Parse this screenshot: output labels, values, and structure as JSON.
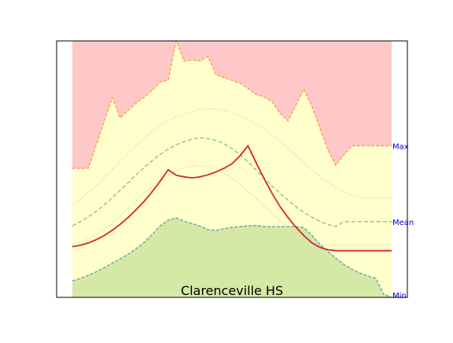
{
  "chart_data": {
    "type": "area",
    "title": "Clarenceville HS",
    "xlabel": "",
    "ylabel": "",
    "grid": false,
    "legend": "none",
    "x": [
      0,
      1,
      2,
      3,
      4,
      5,
      6,
      7,
      8,
      9,
      10,
      11,
      12,
      13,
      14,
      15,
      16,
      17,
      18,
      19,
      20,
      21,
      22,
      23,
      24,
      25,
      26,
      27,
      28,
      29,
      30,
      31,
      32,
      33,
      34,
      35,
      36,
      37,
      38,
      39,
      40
    ],
    "ylim": [
      0,
      100
    ],
    "xlim": [
      0,
      40
    ],
    "band_labels": {
      "max": "Max",
      "mean": "Mean",
      "min": "Min"
    },
    "series": [
      {
        "key": "max",
        "values": [
          50.3,
          50.3,
          50.3,
          59.5,
          68.8,
          77.9,
          70.0,
          73.0,
          75.8,
          78.0,
          80.8,
          84.0,
          84.6,
          100.0,
          92.1,
          92.6,
          92.1,
          94.0,
          86.8,
          85.7,
          84.6,
          83.6,
          81.5,
          79.1,
          78.2,
          76.4,
          71.8,
          68.8,
          74.9,
          81.3,
          74.5,
          66.0,
          57.7,
          51.5,
          55.5,
          59.1,
          59.1,
          59.1,
          59.1,
          59.1,
          59.1
        ]
      },
      {
        "key": "upper_quartile",
        "values": [
          36.2,
          38.3,
          40.8,
          43.6,
          46.6,
          49.8,
          53.1,
          56.3,
          59.3,
          62.1,
          64.7,
          67.0,
          68.8,
          70.3,
          71.5,
          72.5,
          73.3,
          73.6,
          73.5,
          72.9,
          72.0,
          70.9,
          69.5,
          67.8,
          65.8,
          63.5,
          61.0,
          58.3,
          55.4,
          52.6,
          49.8,
          47.2,
          44.9,
          42.9,
          41.2,
          39.9,
          38.8,
          38.8,
          38.8,
          38.8,
          38.8
        ]
      },
      {
        "key": "mean",
        "values": [
          27.9,
          29.5,
          31.4,
          33.6,
          36.1,
          38.9,
          41.8,
          44.8,
          47.8,
          50.6,
          53.3,
          55.8,
          57.8,
          59.5,
          60.8,
          61.7,
          62.2,
          61.9,
          61.2,
          59.9,
          58.0,
          55.6,
          52.8,
          49.7,
          46.6,
          43.5,
          40.6,
          37.9,
          35.4,
          33.2,
          31.3,
          29.7,
          28.4,
          27.6,
          29.5,
          29.5,
          29.5,
          29.5,
          29.5,
          29.5,
          29.5
        ]
      },
      {
        "key": "lower_quartile",
        "values": [
          20.6,
          21.6,
          22.9,
          24.5,
          26.5,
          28.9,
          31.6,
          34.6,
          37.7,
          40.6,
          43.3,
          45.8,
          47.8,
          49.5,
          50.6,
          51.3,
          51.3,
          50.9,
          50.0,
          48.6,
          46.6,
          44.2,
          41.5,
          38.6,
          35.7,
          32.8,
          30.0,
          27.4,
          25.1,
          23.1,
          21.5,
          20.3,
          20.3,
          20.3,
          20.3,
          20.3,
          20.3,
          20.3,
          20.3,
          20.3,
          20.3
        ]
      },
      {
        "key": "min",
        "values": [
          6.4,
          7.4,
          8.6,
          10.0,
          11.6,
          13.3,
          15.0,
          16.9,
          19.0,
          21.5,
          24.5,
          27.9,
          30.1,
          31.0,
          29.7,
          28.8,
          27.8,
          26.4,
          26.1,
          26.8,
          27.3,
          27.6,
          27.9,
          28.0,
          27.6,
          27.6,
          27.6,
          27.6,
          27.6,
          27.2,
          24.2,
          20.7,
          17.9,
          15.3,
          12.9,
          11.0,
          9.5,
          8.3,
          7.5,
          1.2,
          0.0
        ]
      },
      {
        "key": "current",
        "values": [
          19.8,
          20.3,
          21.2,
          22.5,
          24.1,
          26.2,
          28.5,
          31.2,
          34.2,
          37.5,
          41.2,
          45.3,
          49.8,
          47.6,
          47.0,
          46.6,
          47.0,
          47.8,
          48.9,
          50.3,
          52.1,
          55.2,
          59.1,
          52.7,
          46.4,
          40.6,
          35.5,
          31.2,
          27.4,
          24.1,
          21.3,
          19.5,
          18.6,
          18.2,
          18.2,
          18.2,
          18.2,
          18.2,
          18.2,
          18.2,
          18.2
        ]
      }
    ],
    "colors": {
      "max_band": "#ffc8c8",
      "middle_band": "#ffffcc",
      "min_band": "#d6e8a6",
      "max_line": "#ff9a42",
      "mean_line": "#88c87a",
      "quartile_line": "#d0d6a0",
      "min_line": "#5ca1ad",
      "current_line": "#d62728",
      "band_label": "#0000cc"
    }
  }
}
